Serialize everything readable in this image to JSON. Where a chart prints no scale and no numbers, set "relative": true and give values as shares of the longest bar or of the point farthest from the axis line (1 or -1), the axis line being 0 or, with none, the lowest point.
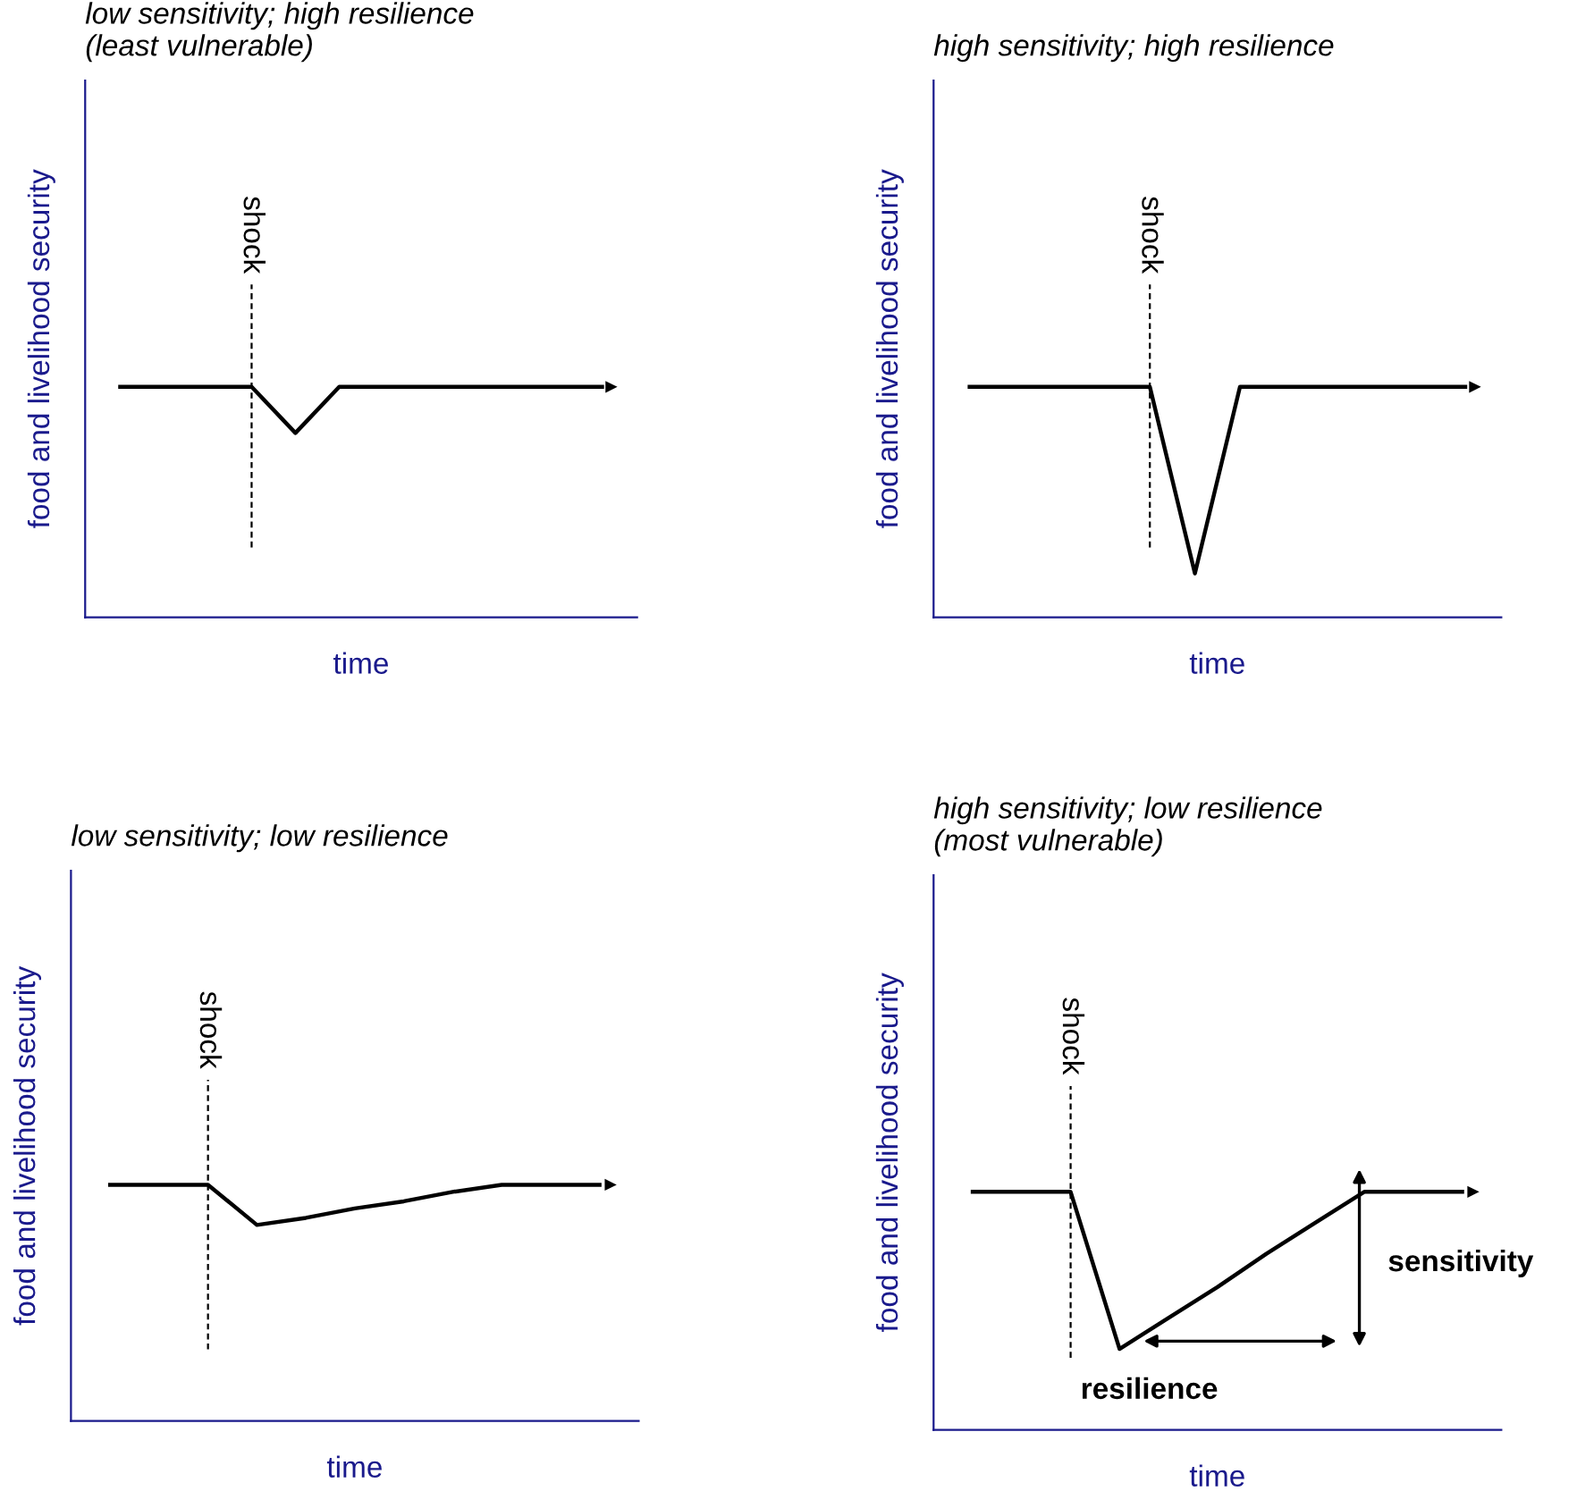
{
  "chart_data": [
    {
      "type": "line",
      "title": "low sensitivity; high resilience\n(least vulnerable)",
      "xlabel": "time",
      "ylabel": "food and livelihood security",
      "relative": true,
      "marker": "none",
      "line_style": "solid",
      "categories": [
        null,
        null,
        null,
        null,
        null,
        null,
        null,
        null,
        null,
        null,
        null,
        null
      ],
      "series": [
        {
          "color": "#000000",
          "values": [
            1,
            1,
            1,
            1,
            0.8,
            1,
            1,
            1,
            1,
            1,
            1,
            1
          ]
        }
      ],
      "annotations": [
        "shock"
      ]
    },
    {
      "type": "line",
      "title": "high sensitivity; high resilience",
      "xlabel": "time",
      "ylabel": "food and livelihood security",
      "relative": true,
      "marker": "none",
      "line_style": "solid",
      "categories": [
        null,
        null,
        null,
        null,
        null,
        null,
        null,
        null,
        null,
        null,
        null,
        null
      ],
      "series": [
        {
          "color": "#000000",
          "values": [
            1,
            1,
            1,
            1,
            1,
            0.19,
            1,
            1,
            1,
            1,
            1,
            1
          ]
        }
      ],
      "annotations": [
        "shock"
      ]
    },
    {
      "type": "line",
      "title": "low sensitivity; low resilience",
      "xlabel": "time",
      "ylabel": "food and livelihood security",
      "relative": true,
      "marker": "none",
      "line_style": "solid",
      "categories": [
        null,
        null,
        null,
        null,
        null,
        null,
        null,
        null,
        null,
        null,
        null
      ],
      "series": [
        {
          "color": "#000000",
          "values": [
            1,
            1,
            1,
            0.83,
            0.86,
            0.9,
            0.93,
            0.97,
            1,
            1,
            1
          ]
        }
      ],
      "annotations": [
        "shock"
      ]
    },
    {
      "type": "line",
      "title": "high sensitivity; low resilience\n(most vulnerable)",
      "xlabel": "time",
      "ylabel": "food and livelihood security",
      "relative": true,
      "marker": "none",
      "line_style": "solid",
      "categories": [
        null,
        null,
        null,
        null,
        null,
        null,
        null,
        null,
        null,
        null,
        null
      ],
      "series": [
        {
          "color": "#000000",
          "values": [
            1,
            1,
            1,
            0.34,
            0.47,
            0.6,
            0.74,
            0.87,
            1,
            1,
            1
          ]
        }
      ],
      "annotations": [
        "shock",
        "sensitivity",
        "resilience"
      ]
    }
  ]
}
